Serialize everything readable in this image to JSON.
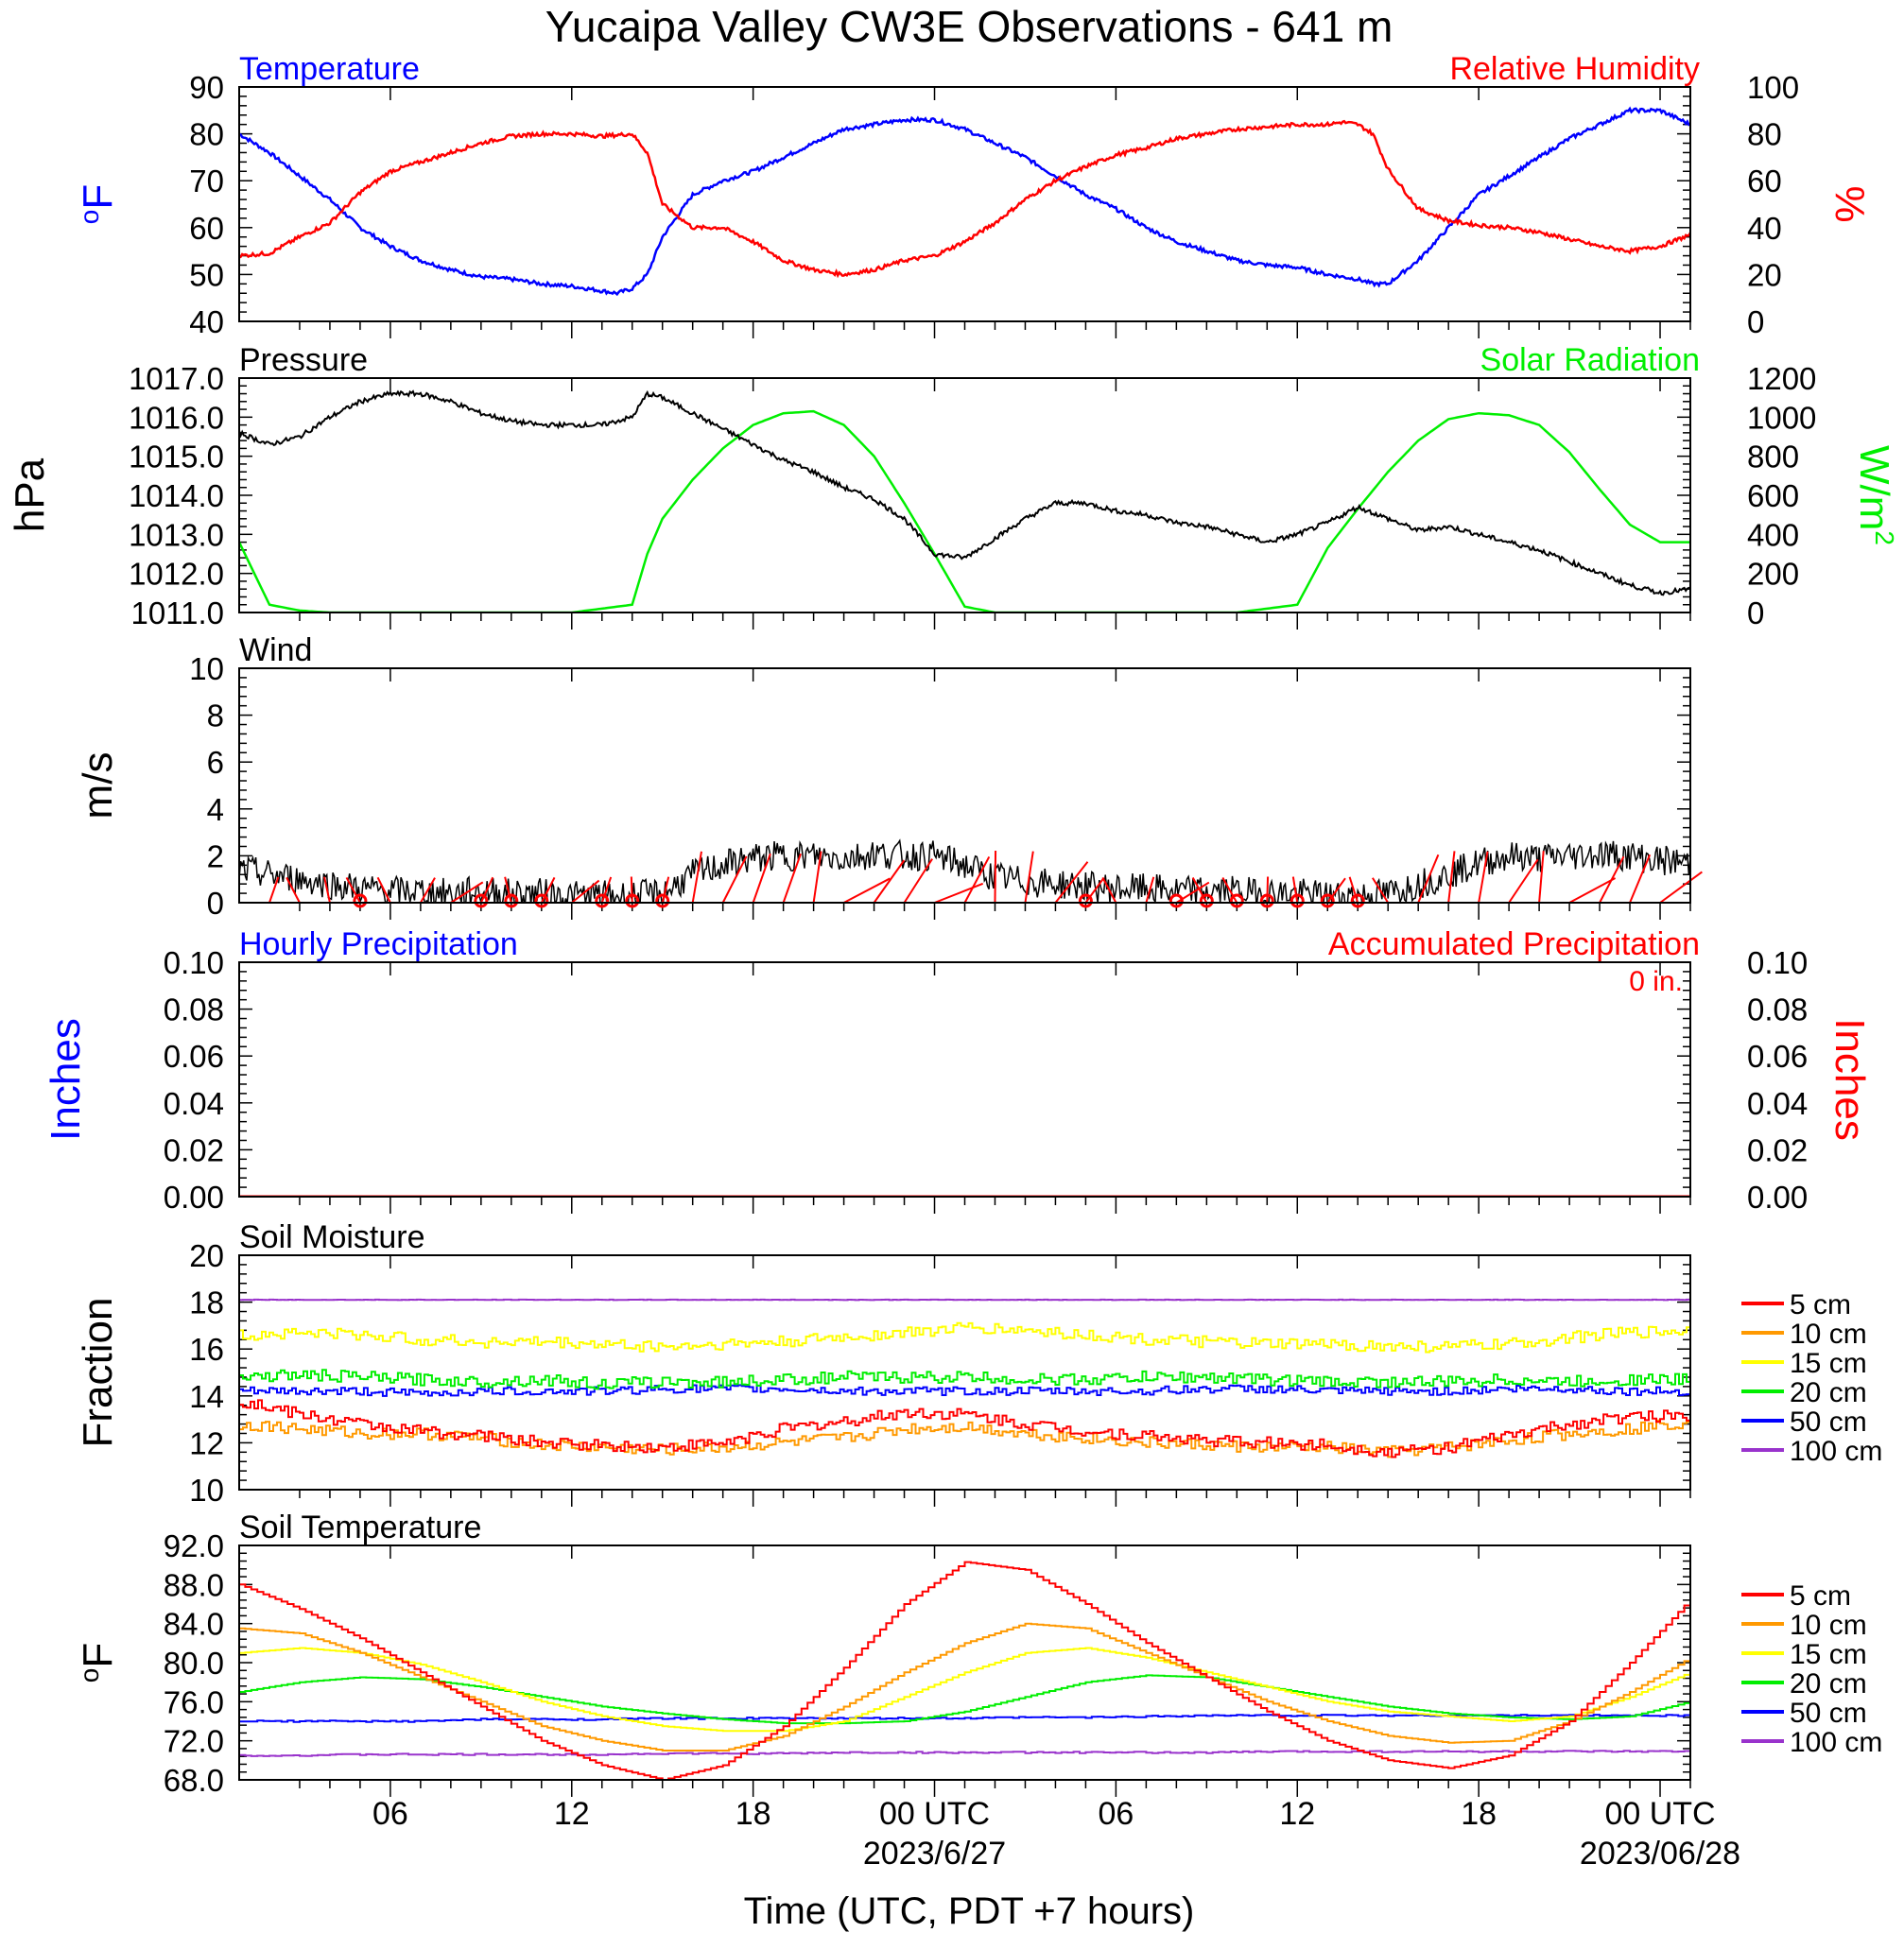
{
  "title": "Yucaipa Valley CW3E Observations - 641 m",
  "xlabel": "Time (UTC, PDT +7 hours)",
  "x_ticks": [
    "06",
    "12",
    "18",
    "00 UTC",
    "06",
    "12",
    "18",
    "00 UTC"
  ],
  "x_dates": [
    "2023/6/27",
    "2023/06/28"
  ],
  "legend_soil": [
    "5 cm",
    "10 cm",
    "15 cm",
    "20 cm",
    "50 cm",
    "100 cm"
  ],
  "colors": {
    "temperature": "#0000ff",
    "humidity": "#ff0000",
    "pressure": "#000000",
    "solar": "#00ee00",
    "wind": "#000000",
    "wind_barb": "#ff0000",
    "precip_hourly": "#0000ff",
    "precip_accum": "#ff0000",
    "depths": [
      "#ff0000",
      "#ff9900",
      "#ffff00",
      "#00ee00",
      "#0000ff",
      "#9933cc"
    ]
  },
  "chart_data": [
    {
      "type": "line",
      "panel": "temperature_humidity",
      "title_left": "Temperature",
      "title_right": "Relative Humidity",
      "ylabel": "oF",
      "ylabel_right": "%",
      "ylim": [
        40,
        90
      ],
      "ylim_right": [
        0,
        100
      ],
      "yticks": [
        "90",
        "80",
        "70",
        "60",
        "50",
        "40"
      ],
      "yticks_right": [
        "100",
        "80",
        "60",
        "40",
        "20",
        "0"
      ],
      "x_hours": [
        1,
        2,
        3,
        4,
        5,
        6,
        7,
        8,
        9,
        10,
        11,
        12,
        13,
        13.5,
        14,
        14.5,
        15,
        16,
        17,
        18,
        19,
        20,
        21,
        22,
        23,
        24,
        25,
        26,
        27,
        28,
        29,
        30,
        31,
        32,
        33,
        34,
        35,
        36,
        37,
        37.5,
        38,
        38.5,
        39,
        40,
        41,
        42,
        43,
        44,
        45,
        46,
        47,
        48,
        49
      ],
      "series": [
        {
          "name": "Temperature",
          "axis": "left",
          "values": [
            80,
            76,
            71,
            66,
            60,
            56,
            53,
            51,
            49.5,
            49,
            48,
            47.5,
            46.5,
            46,
            47,
            50,
            58,
            67,
            70,
            72,
            75,
            78,
            81,
            82,
            83,
            83,
            81,
            78,
            75,
            71,
            67,
            64,
            60,
            57,
            55,
            53,
            52,
            51.5,
            50,
            49.5,
            49,
            48,
            48,
            53,
            60,
            67,
            71,
            75,
            79,
            82,
            85,
            85,
            82
          ]
        },
        {
          "name": "Relative Humidity",
          "axis": "right",
          "values": [
            28,
            29,
            36,
            42,
            55,
            64,
            68,
            72,
            76,
            79,
            80,
            80,
            79,
            79.5,
            80,
            72,
            50,
            40,
            40,
            34,
            26,
            22,
            20,
            22,
            26,
            28,
            34,
            42,
            52,
            60,
            66,
            71,
            74,
            78,
            80,
            82,
            83,
            84,
            84,
            85,
            84,
            80,
            65,
            48,
            43,
            41,
            40,
            38,
            35,
            32,
            30,
            32,
            37
          ]
        }
      ]
    },
    {
      "type": "line",
      "panel": "pressure_solar",
      "title_left": "Pressure",
      "title_right": "Solar Radiation",
      "ylabel": "hPa",
      "ylabel_right": "W/m2",
      "ylim": [
        1011.0,
        1017.0
      ],
      "ylim_right": [
        0,
        1200
      ],
      "yticks": [
        "1017.0",
        "1016.0",
        "1015.0",
        "1014.0",
        "1013.0",
        "1012.0",
        "1011.0"
      ],
      "yticks_right": [
        "1200",
        "1000",
        "800",
        "600",
        "400",
        "200",
        "0"
      ],
      "x_hours": [
        1,
        2,
        3,
        4,
        5,
        6,
        7,
        8,
        9,
        10,
        11,
        12,
        13,
        14,
        14.5,
        15,
        16,
        17,
        18,
        19,
        20,
        21,
        22,
        23,
        24,
        25,
        26,
        27,
        28,
        29,
        30,
        31,
        32,
        33,
        34,
        35,
        36,
        37,
        38,
        39,
        40,
        41,
        42,
        43,
        44,
        45,
        46,
        47,
        48,
        49
      ],
      "series": [
        {
          "name": "Pressure",
          "axis": "left",
          "values": [
            1015.6,
            1015.3,
            1015.5,
            1016.0,
            1016.4,
            1016.6,
            1016.6,
            1016.4,
            1016.1,
            1015.9,
            1015.8,
            1015.8,
            1015.8,
            1016.0,
            1016.6,
            1016.5,
            1016.1,
            1015.7,
            1015.3,
            1014.9,
            1014.6,
            1014.2,
            1013.9,
            1013.4,
            1012.5,
            1012.4,
            1012.9,
            1013.4,
            1013.8,
            1013.8,
            1013.6,
            1013.5,
            1013.3,
            1013.2,
            1013.0,
            1012.8,
            1013.0,
            1013.3,
            1013.7,
            1013.4,
            1013.1,
            1013.2,
            1013.0,
            1012.8,
            1012.6,
            1012.3,
            1012.0,
            1011.7,
            1011.5,
            1011.6
          ]
        },
        {
          "name": "Solar Radiation",
          "axis": "right",
          "values": [
            360,
            40,
            10,
            0,
            0,
            0,
            0,
            0,
            0,
            0,
            0,
            0,
            20,
            40,
            300,
            480,
            680,
            840,
            960,
            1020,
            1030,
            960,
            800,
            560,
            300,
            30,
            0,
            0,
            0,
            0,
            0,
            0,
            0,
            0,
            0,
            20,
            40,
            330,
            530,
            720,
            880,
            990,
            1020,
            1010,
            960,
            820,
            630,
            450,
            360,
            360
          ]
        }
      ]
    },
    {
      "type": "line",
      "panel": "wind",
      "title_left": "Wind",
      "ylabel": "m/s",
      "ylim": [
        0,
        10
      ],
      "yticks": [
        "10",
        "8",
        "6",
        "4",
        "2",
        "0"
      ],
      "x_hours": [
        1,
        2,
        3,
        4,
        5,
        6,
        7,
        8,
        9,
        10,
        11,
        12,
        13,
        14,
        15,
        16,
        17,
        18,
        19,
        20,
        21,
        22,
        23,
        24,
        25,
        26,
        27,
        28,
        29,
        30,
        31,
        32,
        33,
        34,
        35,
        36,
        37,
        38,
        39,
        40,
        41,
        42,
        43,
        44,
        45,
        46,
        47,
        48,
        49
      ],
      "series": [
        {
          "name": "Wind Speed",
          "values": [
            1.4,
            1.2,
            1.0,
            0.8,
            0.6,
            0.5,
            0.5,
            0.4,
            0.5,
            0.4,
            0.4,
            0.3,
            0.3,
            0.3,
            0.4,
            1.2,
            1.6,
            1.9,
            2.0,
            2.0,
            1.9,
            2.1,
            2.0,
            2.0,
            1.6,
            1.1,
            0.9,
            0.8,
            0.7,
            0.6,
            0.6,
            0.5,
            0.5,
            0.5,
            0.4,
            0.4,
            0.3,
            0.3,
            0.4,
            0.8,
            1.2,
            1.7,
            2.0,
            1.9,
            2.0,
            2.1,
            2.0,
            1.8,
            1.7
          ]
        }
      ],
      "calm_markers_hours": [
        5,
        9,
        10,
        11,
        13,
        14,
        15,
        29,
        32,
        33,
        34,
        35,
        36,
        37,
        38
      ]
    },
    {
      "type": "line",
      "panel": "precipitation",
      "title_left": "Hourly Precipitation",
      "title_right": "Accumulated Precipitation",
      "total_label": "0 in.",
      "ylabel": "Inches",
      "ylabel_right": "Inches",
      "ylim": [
        0,
        0.1
      ],
      "yticks": [
        "0.10",
        "0.08",
        "0.06",
        "0.04",
        "0.02",
        "0.00"
      ],
      "yticks_right": [
        "0.10",
        "0.08",
        "0.06",
        "0.04",
        "0.02",
        "0.00"
      ],
      "x_hours": [
        1,
        49
      ],
      "series": [
        {
          "name": "Hourly Precipitation",
          "values": [
            0,
            0
          ]
        },
        {
          "name": "Accumulated Precipitation",
          "values": [
            0,
            0
          ]
        }
      ]
    },
    {
      "type": "line",
      "panel": "soil_moisture",
      "title_left": "Soil Moisture",
      "ylabel": "Fraction",
      "ylim": [
        10,
        20
      ],
      "yticks": [
        "20",
        "18",
        "16",
        "14",
        "12",
        "10"
      ],
      "x_hours": [
        1,
        3,
        5,
        7,
        9,
        11,
        13,
        15,
        17,
        19,
        21,
        23,
        25,
        27,
        29,
        31,
        33,
        35,
        37,
        39,
        41,
        43,
        45,
        47,
        49
      ],
      "series": [
        {
          "name": "5 cm",
          "values": [
            13.8,
            13.2,
            12.8,
            12.5,
            12.3,
            12.0,
            11.9,
            11.8,
            12.0,
            12.6,
            12.9,
            13.3,
            13.2,
            12.8,
            12.5,
            12.3,
            12.1,
            12.0,
            11.9,
            11.6,
            11.8,
            12.3,
            12.8,
            13.1,
            13.2
          ]
        },
        {
          "name": "10 cm",
          "values": [
            12.8,
            12.6,
            12.4,
            12.4,
            12.2,
            11.9,
            11.8,
            11.7,
            11.8,
            12.0,
            12.2,
            12.6,
            12.7,
            12.4,
            12.2,
            12.0,
            11.9,
            11.8,
            11.8,
            11.6,
            11.8,
            12.1,
            12.4,
            12.6,
            12.9
          ]
        },
        {
          "name": "15 cm",
          "values": [
            16.6,
            16.7,
            16.6,
            16.4,
            16.3,
            16.3,
            16.2,
            16.1,
            16.2,
            16.3,
            16.5,
            16.7,
            16.9,
            16.8,
            16.6,
            16.4,
            16.3,
            16.2,
            16.2,
            16.1,
            16.1,
            16.2,
            16.5,
            16.7,
            16.8
          ]
        },
        {
          "name": "20 cm",
          "values": [
            14.8,
            14.9,
            14.8,
            14.7,
            14.6,
            14.7,
            14.5,
            14.6,
            14.6,
            14.7,
            14.8,
            14.8,
            14.8,
            14.7,
            14.7,
            14.8,
            14.8,
            14.7,
            14.6,
            14.6,
            14.6,
            14.7,
            14.6,
            14.7,
            14.7
          ]
        },
        {
          "name": "50 cm",
          "values": [
            14.2,
            14.2,
            14.2,
            14.1,
            14.2,
            14.2,
            14.2,
            14.3,
            14.3,
            14.3,
            14.2,
            14.2,
            14.2,
            14.2,
            14.2,
            14.2,
            14.3,
            14.3,
            14.2,
            14.2,
            14.2,
            14.3,
            14.3,
            14.2,
            14.2
          ]
        },
        {
          "name": "100 cm",
          "values": [
            18.1,
            18.1,
            18.1,
            18.1,
            18.1,
            18.1,
            18.1,
            18.1,
            18.1,
            18.1,
            18.1,
            18.1,
            18.1,
            18.1,
            18.1,
            18.1,
            18.1,
            18.1,
            18.1,
            18.1,
            18.1,
            18.1,
            18.1,
            18.1,
            18.1
          ]
        }
      ]
    },
    {
      "type": "line",
      "panel": "soil_temperature",
      "title_left": "Soil Temperature",
      "ylabel": "oF",
      "ylim": [
        68.0,
        92.0
      ],
      "yticks": [
        "92.0",
        "88.0",
        "84.0",
        "80.0",
        "76.0",
        "72.0",
        "68.0"
      ],
      "x_hours": [
        1,
        3,
        5,
        7,
        9,
        11,
        13,
        15,
        17,
        19,
        21,
        23,
        25,
        27,
        29,
        31,
        33,
        35,
        37,
        39,
        41,
        43,
        45,
        47,
        49
      ],
      "series": [
        {
          "name": "5 cm",
          "values": [
            88.0,
            85.5,
            82.5,
            79.0,
            75.5,
            72.0,
            69.5,
            68.0,
            69.5,
            73.5,
            79.5,
            86.0,
            90.3,
            89.5,
            86.0,
            82.0,
            78.5,
            75.0,
            72.0,
            70.0,
            69.2,
            70.5,
            74.0,
            80.0,
            86.5
          ]
        },
        {
          "name": "10 cm",
          "values": [
            83.5,
            83.0,
            81.0,
            78.5,
            76.0,
            73.5,
            72.0,
            71.0,
            71.0,
            72.5,
            75.5,
            79.0,
            82.0,
            84.0,
            83.5,
            81.0,
            78.5,
            76.0,
            74.0,
            72.5,
            71.8,
            72.0,
            74.0,
            77.0,
            80.5
          ]
        },
        {
          "name": "15 cm",
          "values": [
            81.0,
            81.5,
            81.0,
            79.8,
            78.0,
            76.0,
            74.5,
            73.5,
            73.0,
            73.0,
            74.0,
            76.5,
            79.0,
            81.0,
            81.5,
            80.5,
            79.0,
            77.5,
            76.0,
            75.0,
            74.5,
            74.0,
            74.5,
            76.5,
            79.0
          ]
        },
        {
          "name": "20 cm",
          "values": [
            77.0,
            78.0,
            78.5,
            78.3,
            77.5,
            76.5,
            75.5,
            74.8,
            74.2,
            73.8,
            73.8,
            74.0,
            75.0,
            76.5,
            78.0,
            78.7,
            78.5,
            77.5,
            76.5,
            75.5,
            74.8,
            74.4,
            74.2,
            74.5,
            76.0
          ]
        },
        {
          "name": "50 cm",
          "values": [
            74.0,
            74.0,
            74.0,
            74.0,
            74.2,
            74.2,
            74.2,
            74.3,
            74.3,
            74.3,
            74.3,
            74.3,
            74.3,
            74.4,
            74.4,
            74.5,
            74.6,
            74.6,
            74.6,
            74.6,
            74.6,
            74.6,
            74.6,
            74.6,
            74.6
          ]
        },
        {
          "name": "100 cm",
          "values": [
            70.5,
            70.5,
            70.6,
            70.6,
            70.6,
            70.6,
            70.6,
            70.7,
            70.7,
            70.7,
            70.8,
            70.8,
            70.8,
            70.8,
            70.8,
            70.8,
            70.8,
            70.9,
            70.9,
            70.9,
            70.9,
            70.9,
            70.9,
            70.9,
            70.9
          ]
        }
      ]
    }
  ]
}
